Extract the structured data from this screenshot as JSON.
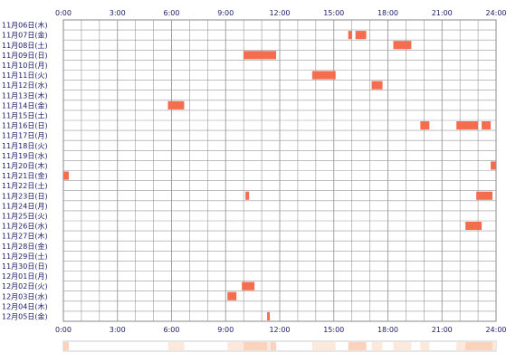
{
  "chart_data": {
    "type": "heatmap",
    "title": "",
    "xlabel": "",
    "ylabel": "",
    "x_range_hours": [
      0,
      24
    ],
    "x_ticks": [
      "0:00",
      "3:00",
      "6:00",
      "9:00",
      "12:00",
      "15:00",
      "18:00",
      "21:00",
      "24:00"
    ],
    "grid": true,
    "colors": {
      "event": "#f46d4e",
      "grid": "#999999",
      "label": "#1a1a66",
      "summary_light": "#fde8dc",
      "summary_dark": "#fbd2bc"
    },
    "rows": [
      {
        "label": "11月06日(木)",
        "events": []
      },
      {
        "label": "11月07日(金)",
        "events": [
          [
            15.8,
            16.0
          ],
          [
            16.2,
            16.8
          ]
        ]
      },
      {
        "label": "11月08日(土)",
        "events": [
          [
            18.3,
            19.3
          ]
        ]
      },
      {
        "label": "11月09日(日)",
        "events": [
          [
            10.0,
            11.8
          ]
        ]
      },
      {
        "label": "11月10日(月)",
        "events": []
      },
      {
        "label": "11月11日(火)",
        "events": [
          [
            13.8,
            15.1
          ]
        ]
      },
      {
        "label": "11月12日(水)",
        "events": [
          [
            17.1,
            17.7
          ]
        ]
      },
      {
        "label": "11月13日(木)",
        "events": []
      },
      {
        "label": "11月14日(金)",
        "events": [
          [
            5.8,
            6.7
          ]
        ]
      },
      {
        "label": "11月15日(土)",
        "events": []
      },
      {
        "label": "11月16日(日)",
        "events": [
          [
            19.8,
            20.3
          ],
          [
            21.8,
            23.0
          ],
          [
            23.2,
            23.7
          ]
        ]
      },
      {
        "label": "11月17日(月)",
        "events": []
      },
      {
        "label": "11月18日(火)",
        "events": []
      },
      {
        "label": "11月19日(水)",
        "events": []
      },
      {
        "label": "11月20日(木)",
        "events": [
          [
            23.7,
            24.0
          ]
        ]
      },
      {
        "label": "11月21日(金)",
        "events": [
          [
            0.0,
            0.3
          ]
        ]
      },
      {
        "label": "11月22日(土)",
        "events": []
      },
      {
        "label": "11月23日(日)",
        "events": [
          [
            10.1,
            10.3
          ],
          [
            22.9,
            23.8
          ]
        ]
      },
      {
        "label": "11月24日(月)",
        "events": []
      },
      {
        "label": "11月25日(火)",
        "events": []
      },
      {
        "label": "11月26日(水)",
        "events": [
          [
            22.3,
            23.2
          ]
        ]
      },
      {
        "label": "11月27日(木)",
        "events": []
      },
      {
        "label": "11月28日(金)",
        "events": []
      },
      {
        "label": "11月29日(土)",
        "events": []
      },
      {
        "label": "11月30日(日)",
        "events": []
      },
      {
        "label": "12月01日(月)",
        "events": []
      },
      {
        "label": "12月02日(火)",
        "events": [
          [
            9.9,
            10.6
          ]
        ]
      },
      {
        "label": "12月03日(水)",
        "events": [
          [
            9.1,
            9.6
          ]
        ]
      },
      {
        "label": "12月04日(木)",
        "events": []
      },
      {
        "label": "12月05日(金)",
        "events": [
          [
            11.3,
            11.45
          ]
        ]
      }
    ],
    "summary": [
      {
        "range": [
          0.0,
          0.3
        ],
        "level": "dark"
      },
      {
        "range": [
          5.8,
          6.7
        ],
        "level": "light"
      },
      {
        "range": [
          9.1,
          10.6
        ],
        "level": "light"
      },
      {
        "range": [
          10.0,
          11.8
        ],
        "level": "dark"
      },
      {
        "range": [
          11.3,
          11.5
        ],
        "level": "light"
      },
      {
        "range": [
          13.8,
          15.1
        ],
        "level": "light"
      },
      {
        "range": [
          15.8,
          16.8
        ],
        "level": "dark"
      },
      {
        "range": [
          17.1,
          17.7
        ],
        "level": "light"
      },
      {
        "range": [
          18.3,
          19.3
        ],
        "level": "light"
      },
      {
        "range": [
          19.8,
          20.3
        ],
        "level": "light"
      },
      {
        "range": [
          21.8,
          24.0
        ],
        "level": "light"
      },
      {
        "range": [
          22.3,
          23.8
        ],
        "level": "dark"
      }
    ]
  }
}
